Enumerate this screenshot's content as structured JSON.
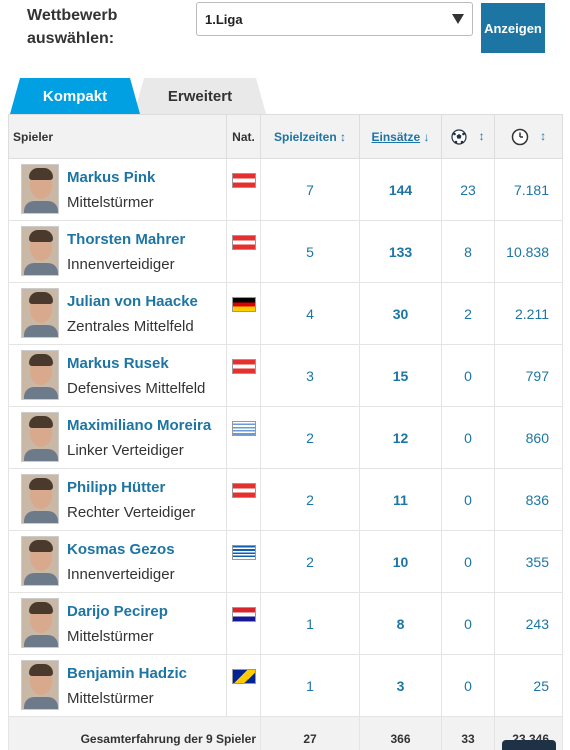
{
  "filter": {
    "label": "Wettbewerb auswählen:",
    "selected": "1.Liga",
    "button": "Anzeigen"
  },
  "tabs": [
    {
      "label": "Kompakt",
      "active": true
    },
    {
      "label": "Erweitert",
      "active": false
    }
  ],
  "table": {
    "headers": {
      "player": "Spieler",
      "nat": "Nat.",
      "seasons": "Spielzeiten",
      "apps": "Einsätze",
      "sort_arrow": "↕",
      "sort_desc": "↓",
      "goals_icon": "football-icon",
      "minutes_icon": "clock-icon"
    },
    "rows": [
      {
        "name": "Markus Pink",
        "position": "Mittelstürmer",
        "nat": "Austria",
        "seasons": "7",
        "apps": "144",
        "goals": "23",
        "minutes": "7.181"
      },
      {
        "name": "Thorsten Mahrer",
        "position": "Innenverteidiger",
        "nat": "Austria",
        "seasons": "5",
        "apps": "133",
        "goals": "8",
        "minutes": "10.838"
      },
      {
        "name": "Julian von Haacke",
        "position": "Zentrales Mittelfeld",
        "nat": "Germany",
        "seasons": "4",
        "apps": "30",
        "goals": "2",
        "minutes": "2.211"
      },
      {
        "name": "Markus Rusek",
        "position": "Defensives Mittelfeld",
        "nat": "Austria",
        "seasons": "3",
        "apps": "15",
        "goals": "0",
        "minutes": "797"
      },
      {
        "name": "Maximiliano Moreira",
        "position": "Linker Verteidiger",
        "nat": "Uruguay",
        "seasons": "2",
        "apps": "12",
        "goals": "0",
        "minutes": "860"
      },
      {
        "name": "Philipp Hütter",
        "position": "Rechter Verteidiger",
        "nat": "Austria",
        "seasons": "2",
        "apps": "11",
        "goals": "0",
        "minutes": "836"
      },
      {
        "name": "Kosmas Gezos",
        "position": "Innenverteidiger",
        "nat": "Greece",
        "seasons": "2",
        "apps": "10",
        "goals": "0",
        "minutes": "355"
      },
      {
        "name": "Darijo Pecirep",
        "position": "Mittelstürmer",
        "nat": "Croatia",
        "seasons": "1",
        "apps": "8",
        "goals": "0",
        "minutes": "243"
      },
      {
        "name": "Benjamin Hadzic",
        "position": "Mittelstürmer",
        "nat": "Bosnia-Herzegovina",
        "seasons": "1",
        "apps": "3",
        "goals": "0",
        "minutes": "25"
      }
    ],
    "footer": {
      "label": "Gesamterfahrung der 9 Spieler",
      "seasons": "27",
      "apps": "366",
      "goals": "33",
      "minutes": "23.346"
    }
  },
  "colors": {
    "link": "#1d75a3",
    "tab_active": "#00a0e3",
    "button": "#1d75a3"
  }
}
